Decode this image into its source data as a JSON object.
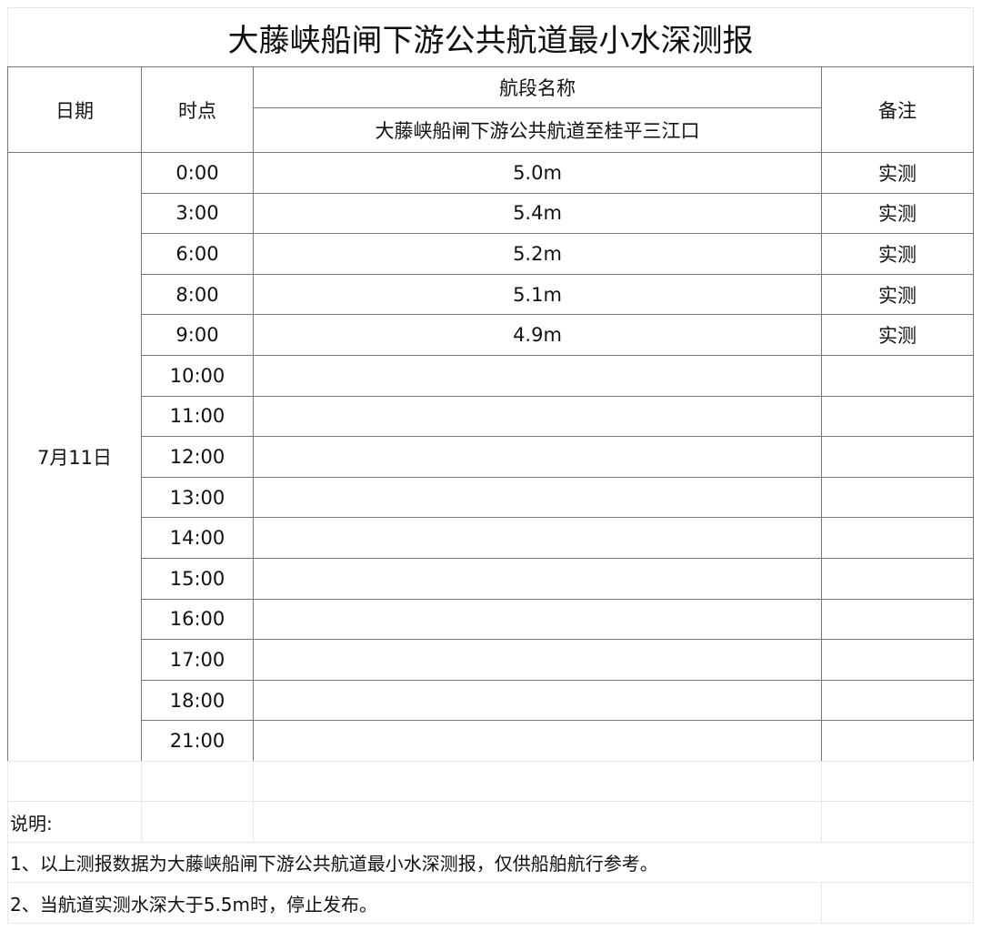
{
  "title": "大藤峡船闸下游公共航道最小水深测报",
  "header": {
    "date": "日期",
    "time": "时点",
    "section_name": "航段名称",
    "section": "大藤峡船闸下游公共航道至桂平三江口",
    "remark": "备注"
  },
  "date_value": "7月11日",
  "rows": [
    {
      "time": "0:00",
      "depth": "5.0m",
      "remark": "实测"
    },
    {
      "time": "3:00",
      "depth": "5.4m",
      "remark": "实测"
    },
    {
      "time": "6:00",
      "depth": "5.2m",
      "remark": "实测"
    },
    {
      "time": "8:00",
      "depth": "5.1m",
      "remark": "实测"
    },
    {
      "time": "9:00",
      "depth": "4.9m",
      "remark": "实测"
    },
    {
      "time": "10:00",
      "depth": "",
      "remark": ""
    },
    {
      "time": "11:00",
      "depth": "",
      "remark": ""
    },
    {
      "time": "12:00",
      "depth": "",
      "remark": ""
    },
    {
      "time": "13:00",
      "depth": "",
      "remark": ""
    },
    {
      "time": "14:00",
      "depth": "",
      "remark": ""
    },
    {
      "time": "15:00",
      "depth": "",
      "remark": ""
    },
    {
      "time": "16:00",
      "depth": "",
      "remark": ""
    },
    {
      "time": "17:00",
      "depth": "",
      "remark": ""
    },
    {
      "time": "18:00",
      "depth": "",
      "remark": ""
    },
    {
      "time": "21:00",
      "depth": "",
      "remark": ""
    }
  ],
  "notes": {
    "label": "说明:",
    "items": [
      "1、以上测报数据为大藤峡船闸下游公共航道最小水深测报，仅供船舶航行参考。",
      "2、当航道实测水深大于5.5m时，停止发布。"
    ]
  }
}
